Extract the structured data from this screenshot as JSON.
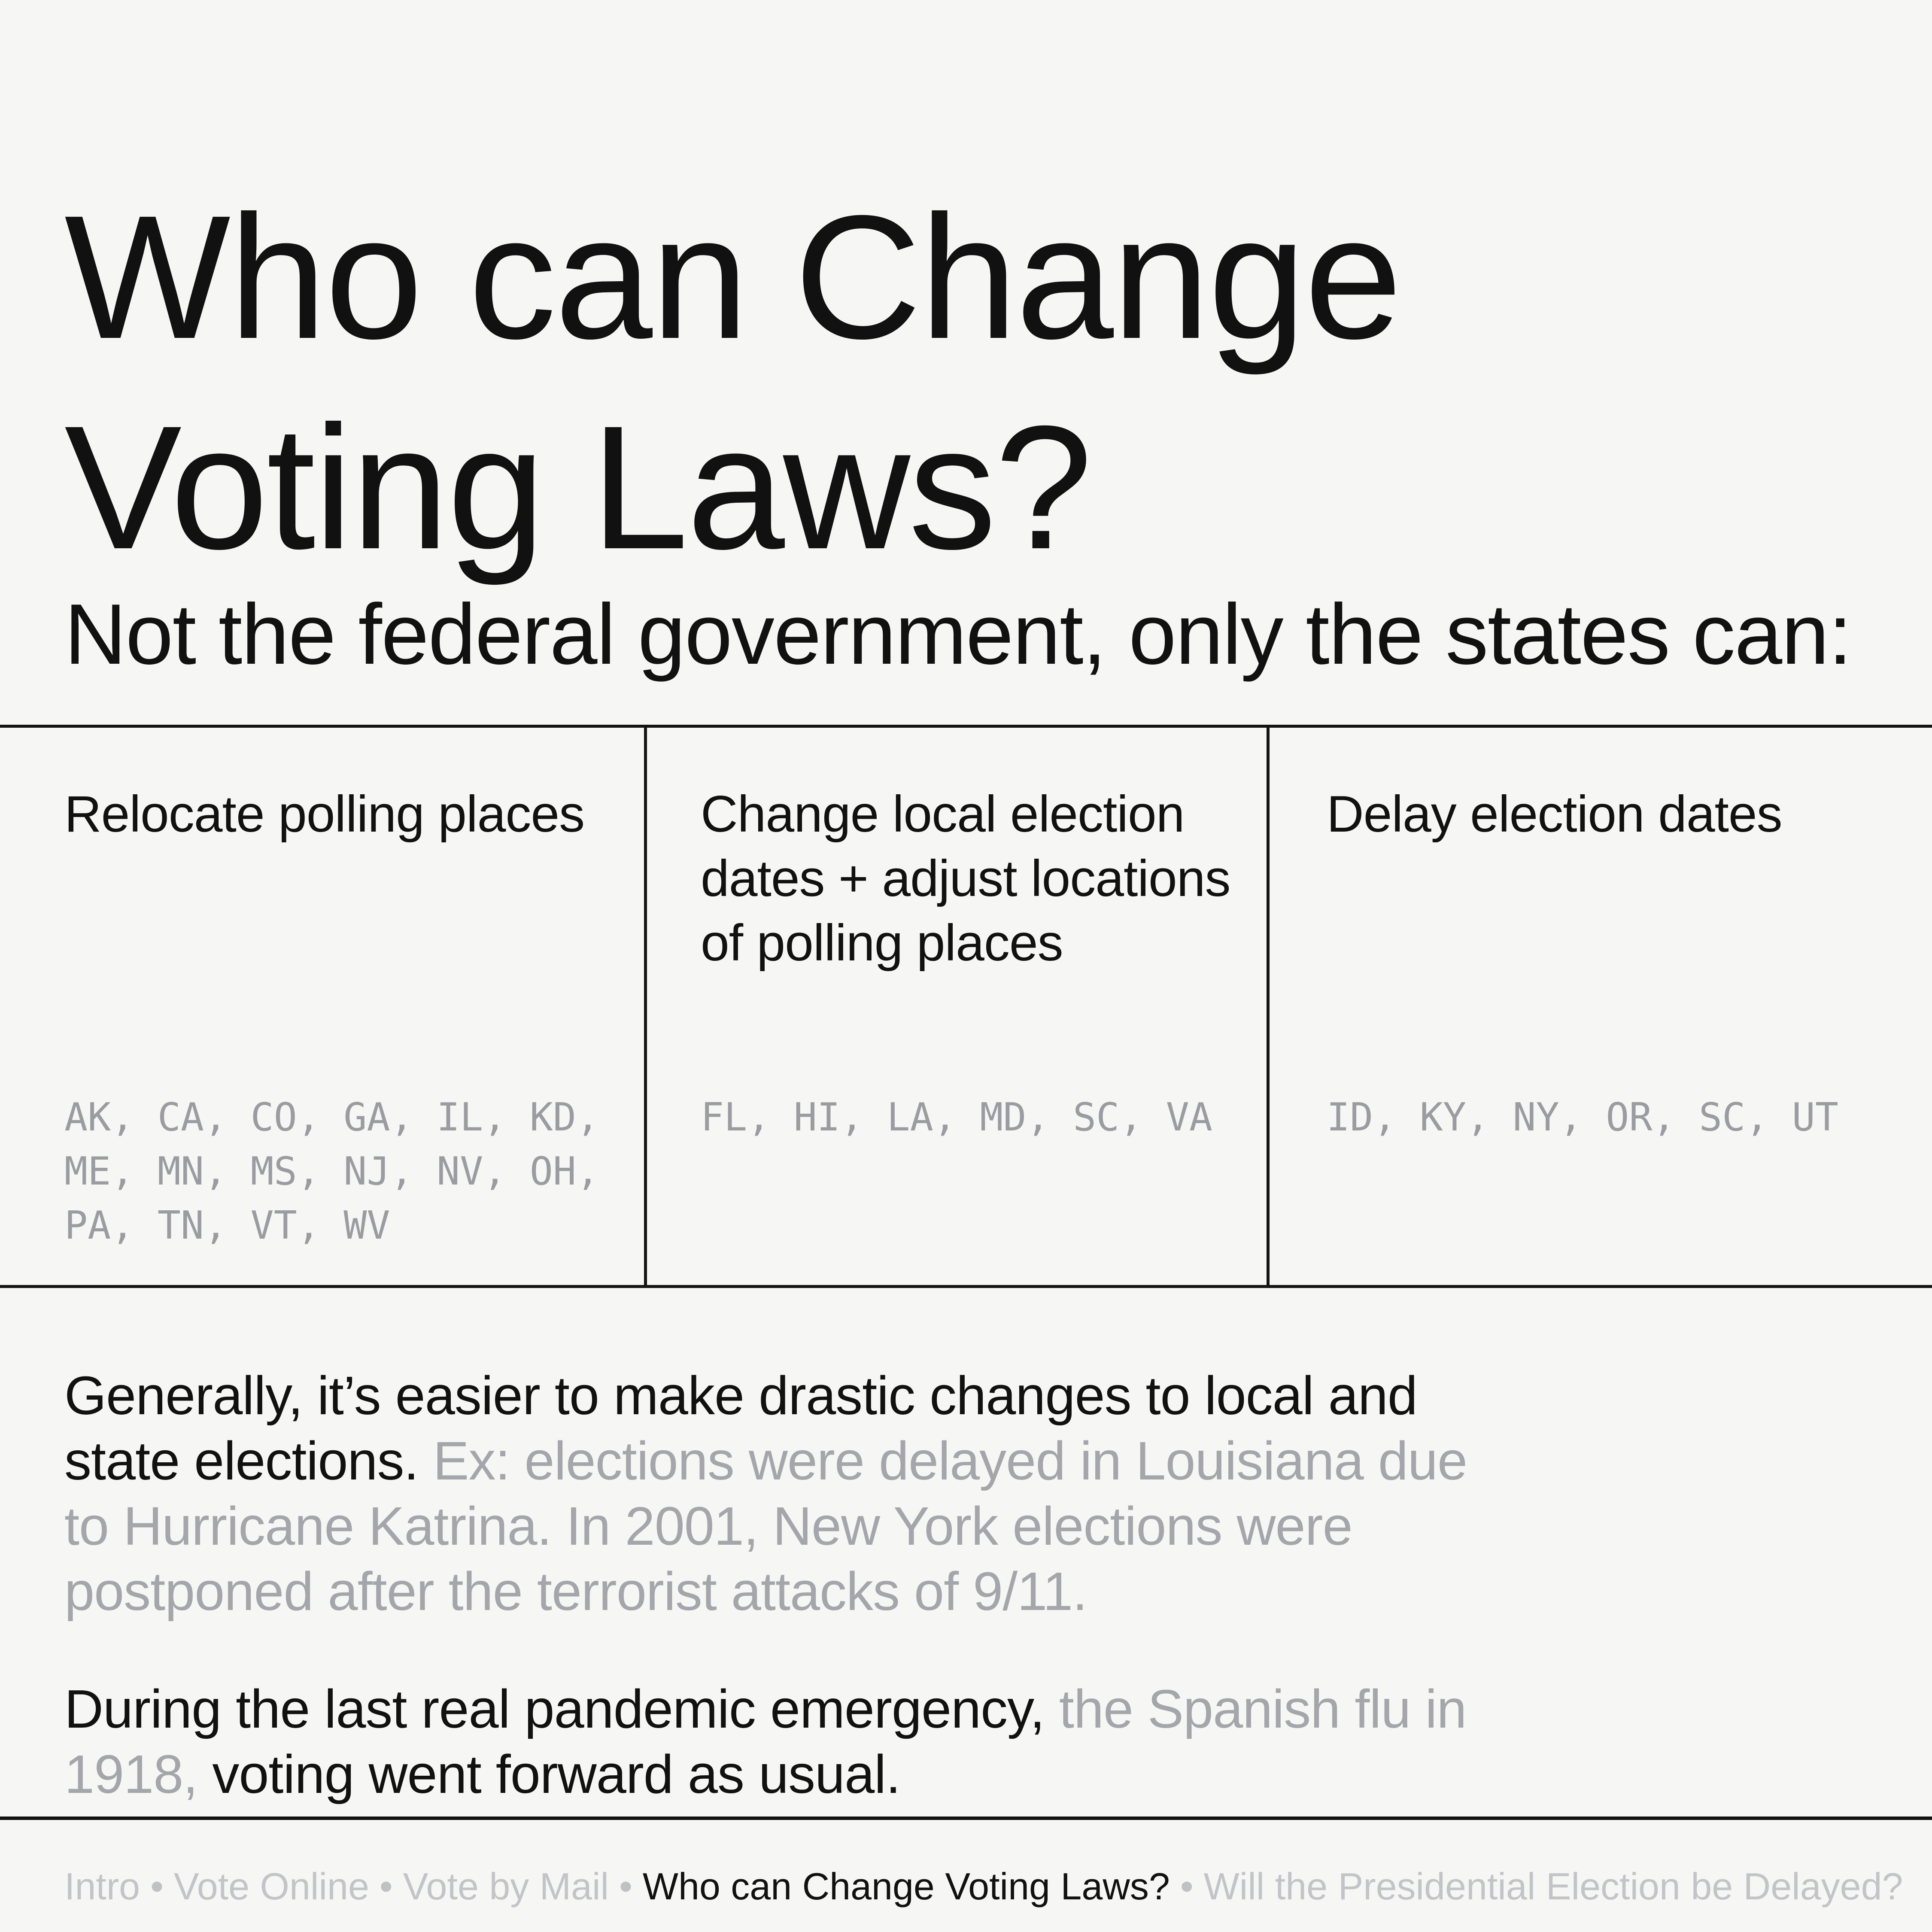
{
  "page": {
    "title": "Who can Change\nVoting Laws?",
    "subtitle": "Not the federal government, only the states can:"
  },
  "table": {
    "columns": [
      {
        "header": "Relocate polling places",
        "states": "AK, CA, CO, GA, IL, KD,\nME, MN, MS, NJ, NV, OH,\nPA, TN, VT, WV"
      },
      {
        "header": "Change local election\ndates + adjust locations\nof polling places",
        "states": "FL, HI, LA, MD, SC, VA"
      },
      {
        "header": "Delay election dates",
        "states": "ID, KY, NY, OR, SC, UT"
      }
    ]
  },
  "paragraphs": {
    "p1_black": "Generally, it’s easier to make drastic changes to local and state elections. ",
    "p1_gray": "Ex: elections were delayed in Louisiana due to Hurricane Katrina. In 2001, New York elections were postponed after the terrorist attacks of 9/11.",
    "p2_black_1": "During the last real pandemic emergency, ",
    "p2_gray": "the Spanish flu in 1918, ",
    "p2_black_2": "voting went forward as usual."
  },
  "footer": {
    "separator": "•",
    "items": [
      {
        "label": "Intro",
        "active": false
      },
      {
        "label": "Vote Online",
        "active": false
      },
      {
        "label": "Vote by Mail",
        "active": false
      },
      {
        "label": "Who can Change Voting Laws?",
        "active": true
      },
      {
        "label": "Will the Presidential Election be Delayed?",
        "active": false
      }
    ]
  },
  "colors": {
    "background": "#f6f6f4",
    "text": "#111111",
    "muted_states": "#9b9ca1",
    "muted_paragraph": "#a5a6ab",
    "muted_footer": "#c3c4c8",
    "rule": "#141414"
  }
}
